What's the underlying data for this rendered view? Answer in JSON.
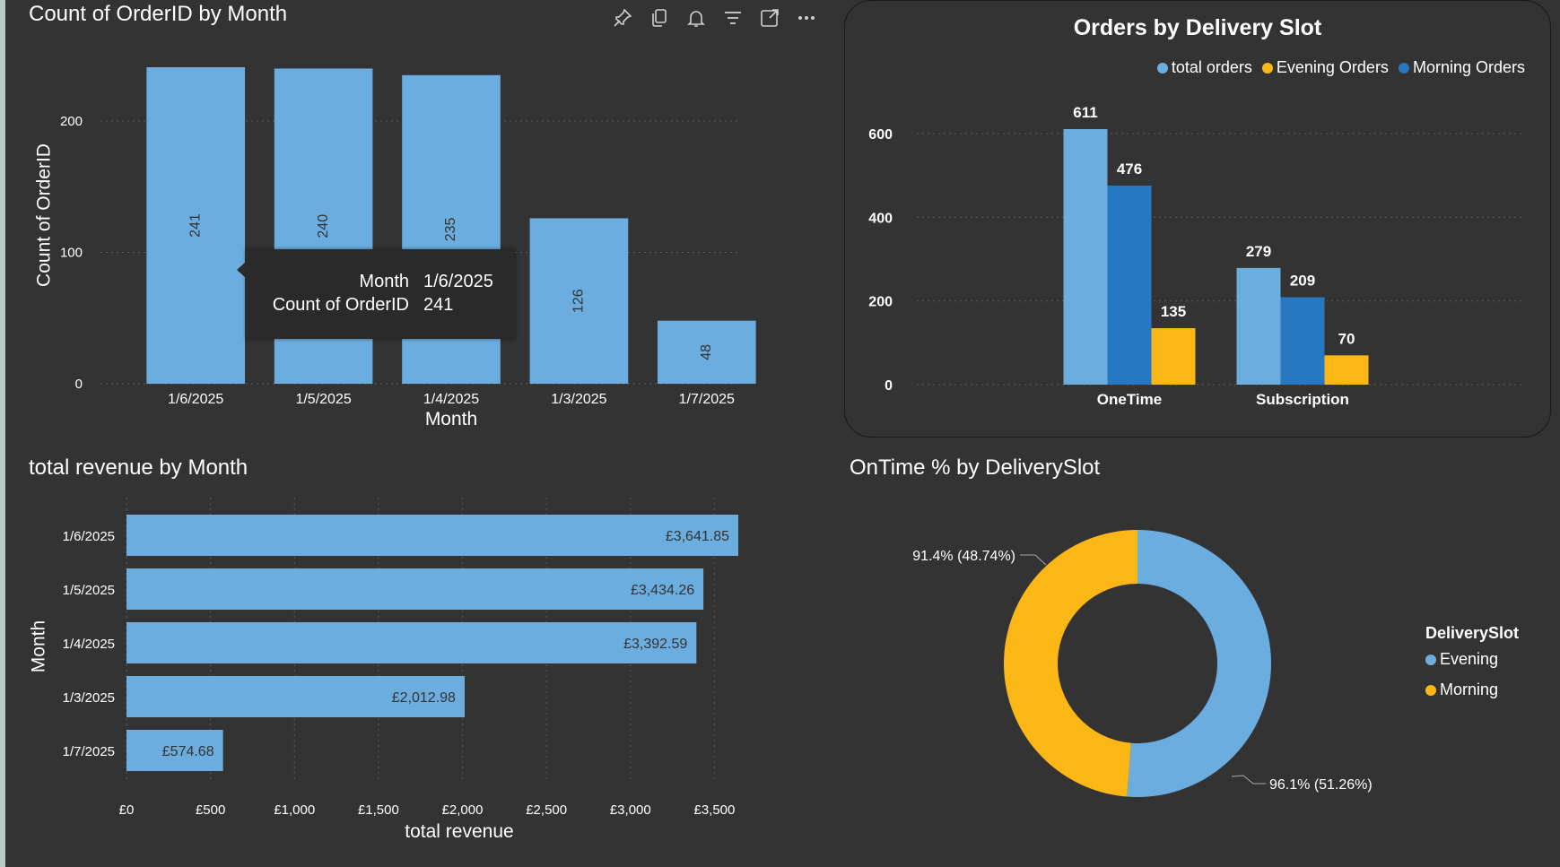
{
  "colors": {
    "background": "#333333",
    "bar_light_blue": "#6cade0",
    "bar_dark_blue": "#2878c1",
    "bar_yellow": "#fbb716",
    "text": "#ffffff",
    "gridline": "#5a5a5a"
  },
  "toolbar_icons": [
    "pin-icon",
    "copy-icon",
    "bell-icon",
    "filter-icon",
    "focus-mode-icon",
    "more-options-icon"
  ],
  "tooltip": {
    "rows": [
      {
        "label": "Month",
        "value": "1/6/2025"
      },
      {
        "label": "Count of OrderID",
        "value": "241"
      }
    ]
  },
  "chart_data": [
    {
      "type": "bar",
      "title": "Count of OrderID by Month",
      "xlabel": "Month",
      "ylabel": "Count of OrderID",
      "categories": [
        "1/6/2025",
        "1/5/2025",
        "1/4/2025",
        "1/3/2025",
        "1/7/2025"
      ],
      "values": [
        241,
        240,
        235,
        126,
        48
      ],
      "ylim": [
        0,
        241
      ],
      "yticks": [
        0,
        100,
        200
      ],
      "grid": true,
      "data_labels": true
    },
    {
      "type": "bar",
      "title": "Orders by Delivery Slot",
      "categories": [
        "OneTime",
        "Subscription"
      ],
      "series": [
        {
          "name": "total orders",
          "values": [
            611,
            279
          ],
          "color": "#6cade0"
        },
        {
          "name": "Morning Orders",
          "values": [
            476,
            209
          ],
          "color": "#2878c1"
        },
        {
          "name": "Evening Orders",
          "values": [
            135,
            70
          ],
          "color": "#fbb716"
        }
      ],
      "legend_order": [
        "total orders",
        "Evening Orders",
        "Morning Orders"
      ],
      "legend_colors": [
        "#6cade0",
        "#fbb716",
        "#2878c1"
      ],
      "ylim": [
        0,
        611
      ],
      "yticks": [
        0,
        200,
        400,
        600
      ],
      "legend_position": "top-right",
      "grid": true,
      "data_labels": true
    },
    {
      "type": "bar",
      "orientation": "horizontal",
      "title": "total revenue by Month",
      "xlabel": "total revenue",
      "ylabel": "Month",
      "categories": [
        "1/6/2025",
        "1/5/2025",
        "1/4/2025",
        "1/3/2025",
        "1/7/2025"
      ],
      "values": [
        3641.85,
        3434.26,
        3392.59,
        2012.98,
        574.68
      ],
      "value_labels": [
        "£3,641.85",
        "£3,434.26",
        "£3,392.59",
        "£2,012.98",
        "£574.68"
      ],
      "xlim": [
        0,
        3641.85
      ],
      "xticks": [
        0,
        500,
        1000,
        1500,
        2000,
        2500,
        3000,
        3500
      ],
      "xtick_labels": [
        "£0",
        "£500",
        "£1,000",
        "£1,500",
        "£2,000",
        "£2,500",
        "£3,000",
        "£3,500"
      ],
      "grid": true,
      "data_labels": true
    },
    {
      "type": "pie",
      "style": "donut",
      "title": "OnTime % by DeliverySlot",
      "legend_title": "DeliverySlot",
      "legend_position": "right",
      "slices": [
        {
          "name": "Evening",
          "value": 96.1,
          "share": 51.26,
          "label": "96.1% (51.26%)",
          "color": "#6cade0"
        },
        {
          "name": "Morning",
          "value": 91.4,
          "share": 48.74,
          "label": "91.4% (48.74%)",
          "color": "#fbb716"
        }
      ]
    }
  ]
}
